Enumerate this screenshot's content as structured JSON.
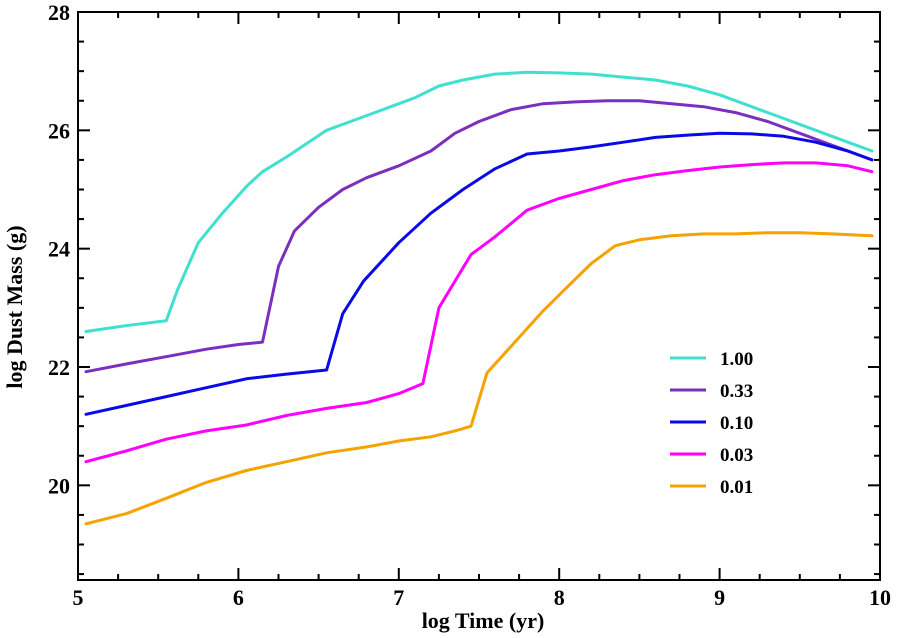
{
  "chart_data": {
    "type": "line",
    "title": "",
    "xlabel": "log Time (yr)",
    "ylabel": "log Dust Mass (g)",
    "xlim": [
      5,
      10
    ],
    "ylim": [
      18.4,
      28
    ],
    "xticks": [
      "5",
      "6",
      "7",
      "8",
      "9",
      "10"
    ],
    "yticks": [
      "20",
      "22",
      "24",
      "26",
      "28"
    ],
    "legend_position": "center-right",
    "series": [
      {
        "name": "1.00",
        "color": "#40e0d0",
        "x": [
          5.05,
          5.3,
          5.55,
          5.62,
          5.75,
          5.9,
          6.05,
          6.15,
          6.3,
          6.55,
          6.75,
          6.95,
          7.1,
          7.25,
          7.4,
          7.6,
          7.8,
          8.0,
          8.2,
          8.4,
          8.6,
          8.8,
          9.0,
          9.2,
          9.4,
          9.6,
          9.8,
          9.95
        ],
        "y": [
          22.6,
          22.7,
          22.78,
          23.3,
          24.1,
          24.6,
          25.05,
          25.3,
          25.55,
          26.0,
          26.2,
          26.4,
          26.55,
          26.75,
          26.85,
          26.95,
          26.98,
          26.97,
          26.95,
          26.9,
          26.85,
          26.75,
          26.6,
          26.4,
          26.2,
          26.0,
          25.8,
          25.65
        ]
      },
      {
        "name": "0.33",
        "color": "#7b2fbe",
        "x": [
          5.05,
          5.3,
          5.6,
          5.8,
          6.0,
          6.15,
          6.25,
          6.35,
          6.5,
          6.65,
          6.8,
          7.0,
          7.2,
          7.35,
          7.5,
          7.7,
          7.9,
          8.1,
          8.3,
          8.5,
          8.7,
          8.9,
          9.1,
          9.3,
          9.5,
          9.7,
          9.95
        ],
        "y": [
          21.92,
          22.05,
          22.2,
          22.3,
          22.38,
          22.42,
          23.7,
          24.3,
          24.7,
          25.0,
          25.2,
          25.4,
          25.65,
          25.95,
          26.15,
          26.35,
          26.45,
          26.48,
          26.5,
          26.5,
          26.45,
          26.4,
          26.3,
          26.15,
          25.95,
          25.75,
          25.5
        ]
      },
      {
        "name": "0.10",
        "color": "#0a0ae6",
        "x": [
          5.05,
          5.3,
          5.55,
          5.8,
          6.05,
          6.3,
          6.55,
          6.65,
          6.78,
          7.0,
          7.2,
          7.4,
          7.6,
          7.8,
          8.0,
          8.2,
          8.4,
          8.6,
          8.8,
          9.0,
          9.2,
          9.4,
          9.6,
          9.8,
          9.95
        ],
        "y": [
          21.2,
          21.35,
          21.5,
          21.65,
          21.8,
          21.88,
          21.95,
          22.9,
          23.45,
          24.1,
          24.6,
          25.0,
          25.35,
          25.6,
          25.65,
          25.72,
          25.8,
          25.88,
          25.92,
          25.95,
          25.94,
          25.9,
          25.8,
          25.65,
          25.5
        ]
      },
      {
        "name": "0.03",
        "color": "#ff00ff",
        "x": [
          5.05,
          5.3,
          5.55,
          5.8,
          6.05,
          6.3,
          6.55,
          6.8,
          7.0,
          7.15,
          7.25,
          7.45,
          7.6,
          7.8,
          8.0,
          8.2,
          8.4,
          8.6,
          8.8,
          9.0,
          9.2,
          9.4,
          9.6,
          9.8,
          9.95
        ],
        "y": [
          20.4,
          20.58,
          20.78,
          20.92,
          21.02,
          21.18,
          21.3,
          21.4,
          21.55,
          21.72,
          23.0,
          23.9,
          24.2,
          24.65,
          24.85,
          25.0,
          25.15,
          25.25,
          25.32,
          25.38,
          25.42,
          25.45,
          25.45,
          25.4,
          25.3
        ]
      },
      {
        "name": "0.01",
        "color": "#f5a300",
        "x": [
          5.05,
          5.3,
          5.55,
          5.8,
          6.05,
          6.3,
          6.55,
          6.8,
          7.0,
          7.2,
          7.35,
          7.45,
          7.55,
          7.7,
          7.9,
          8.05,
          8.2,
          8.35,
          8.5,
          8.7,
          8.9,
          9.1,
          9.3,
          9.5,
          9.7,
          9.95
        ],
        "y": [
          19.35,
          19.52,
          19.78,
          20.05,
          20.25,
          20.4,
          20.55,
          20.65,
          20.75,
          20.82,
          20.92,
          21.0,
          21.9,
          22.35,
          22.95,
          23.35,
          23.75,
          24.05,
          24.15,
          24.22,
          24.25,
          24.25,
          24.27,
          24.27,
          24.25,
          24.22
        ]
      }
    ]
  }
}
